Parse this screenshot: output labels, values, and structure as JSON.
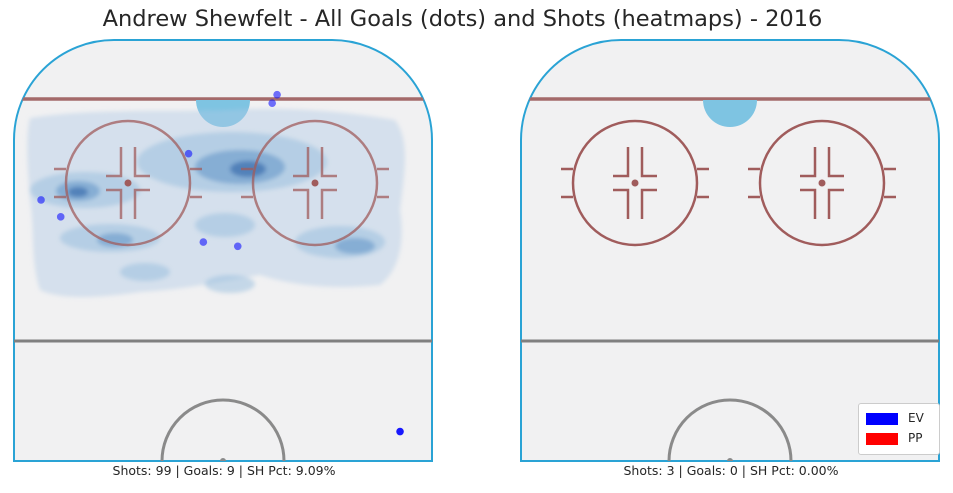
{
  "chart_data": {
    "type": "scatter",
    "title": "Andrew Shewfelt - All Goals (dots) and Shots (heatmaps) - 2016",
    "panels": [
      {
        "caption": "Shots: 99 | Goals: 9 | SH Pct: 9.09%",
        "goals": [
          {
            "x": -44,
            "y": 74,
            "strength": "EV"
          },
          {
            "x": -7,
            "y": 73,
            "strength": "EV"
          },
          {
            "x": 11,
            "y": 87,
            "strength": "EV"
          },
          {
            "x": 10,
            "y": 85,
            "strength": "EV"
          },
          {
            "x": -37,
            "y": 62,
            "strength": "EV"
          },
          {
            "x": -33,
            "y": 58,
            "strength": "EV"
          },
          {
            "x": -4,
            "y": 52,
            "strength": "EV"
          },
          {
            "x": 3,
            "y": 51,
            "strength": "EV"
          },
          {
            "x": 36,
            "y": 7,
            "strength": "EV"
          }
        ]
      },
      {
        "caption": "Shots: 3 | Goals: 0 | SH Pct: 0.00%",
        "goals": []
      }
    ],
    "legend": {
      "position": "lower-right",
      "entries": [
        {
          "label": "EV",
          "color": "#0000ff"
        },
        {
          "label": "PP",
          "color": "#ff0000"
        }
      ]
    }
  }
}
